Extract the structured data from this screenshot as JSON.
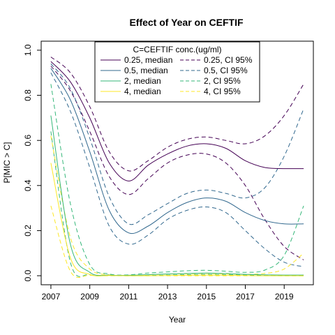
{
  "chart_data": {
    "type": "line",
    "title": "Effect of Year on CEFTIF",
    "xlabel": "Year",
    "ylabel": "P[MIC > C]",
    "xlim": [
      2006.5,
      2020.5
    ],
    "ylim": [
      -0.04,
      1.04
    ],
    "xticks": [
      2007,
      2009,
      2011,
      2013,
      2015,
      2017,
      2019
    ],
    "yticks": [
      0.0,
      0.2,
      0.4,
      0.6,
      0.8,
      1.0
    ],
    "ytick_labels": [
      "0.0",
      "0.2",
      "0.4",
      "0.6",
      "0.8",
      "1.0"
    ],
    "grid": false,
    "legend": {
      "title": "C=CEFTIF conc.(ug/ml)",
      "position": "top-center",
      "columns": 2
    },
    "x": [
      2007,
      2008,
      2009,
      2010,
      2011,
      2012,
      2013,
      2014,
      2015,
      2016,
      2017,
      2018,
      2019,
      2020
    ],
    "series": [
      {
        "name": "0.25, median",
        "style": "solid",
        "color": "#440154",
        "values": [
          0.95,
          0.86,
          0.7,
          0.5,
          0.42,
          0.49,
          0.54,
          0.575,
          0.585,
          0.565,
          0.51,
          0.48,
          0.475,
          0.475
        ]
      },
      {
        "name": "0.5, median",
        "style": "solid",
        "color": "#31688e",
        "values": [
          0.92,
          0.78,
          0.55,
          0.29,
          0.19,
          0.22,
          0.28,
          0.325,
          0.345,
          0.33,
          0.28,
          0.245,
          0.23,
          0.23
        ]
      },
      {
        "name": "2, median",
        "style": "solid",
        "color": "#35b779",
        "values": [
          0.71,
          0.14,
          0.015,
          0.003,
          0.002,
          0.005,
          0.008,
          0.01,
          0.012,
          0.01,
          0.006,
          0.004,
          0.003,
          0.003
        ]
      },
      {
        "name": "4, median",
        "style": "solid",
        "color": "#fde725",
        "values": [
          0.5,
          0.08,
          0.006,
          0.001,
          0.0,
          0.0,
          0.001,
          0.002,
          0.003,
          0.002,
          0.001,
          0.0,
          0.0,
          0.0
        ]
      },
      {
        "name": "0.25, CI 95%",
        "style": "dashed",
        "color": "#440154",
        "values": [
          0.97,
          0.9,
          0.75,
          0.55,
          0.465,
          0.51,
          0.57,
          0.605,
          0.615,
          0.6,
          0.585,
          0.62,
          0.71,
          0.85
        ]
      },
      {
        "name": "0.25, CI 95%",
        "style": "dashed",
        "color": "#440154",
        "legend": false,
        "values": [
          0.93,
          0.82,
          0.64,
          0.44,
          0.36,
          0.43,
          0.5,
          0.535,
          0.54,
          0.5,
          0.4,
          0.25,
          0.13,
          0.07
        ]
      },
      {
        "name": "0.5, CI 95%",
        "style": "dashed",
        "color": "#31688e",
        "values": [
          0.94,
          0.83,
          0.61,
          0.35,
          0.23,
          0.27,
          0.32,
          0.365,
          0.38,
          0.365,
          0.345,
          0.39,
          0.53,
          0.74
        ]
      },
      {
        "name": "0.5, CI 95%",
        "style": "dashed",
        "color": "#31688e",
        "legend": false,
        "values": [
          0.9,
          0.73,
          0.48,
          0.22,
          0.14,
          0.18,
          0.25,
          0.29,
          0.305,
          0.28,
          0.2,
          0.12,
          0.06,
          0.04
        ]
      },
      {
        "name": "2, CI 95%",
        "style": "dashed",
        "color": "#35b779",
        "values": [
          0.85,
          0.32,
          0.05,
          0.008,
          0.004,
          0.012,
          0.017,
          0.022,
          0.024,
          0.02,
          0.015,
          0.025,
          0.09,
          0.31
        ]
      },
      {
        "name": "2, CI 95%",
        "style": "dashed",
        "color": "#35b779",
        "legend": false,
        "values": [
          0.64,
          0.06,
          0.005,
          0.001,
          0.0,
          0.001,
          0.003,
          0.005,
          0.006,
          0.005,
          0.003,
          0.001,
          0.0,
          0.0
        ]
      },
      {
        "name": "4, CI 95%",
        "style": "dashed",
        "color": "#fde725",
        "values": [
          0.62,
          0.17,
          0.03,
          0.004,
          0.002,
          0.004,
          0.007,
          0.009,
          0.01,
          0.008,
          0.006,
          0.01,
          0.03,
          0.1
        ]
      },
      {
        "name": "4, CI 95%",
        "style": "dashed",
        "color": "#fde725",
        "legend": false,
        "values": [
          0.31,
          0.02,
          0.002,
          0.0,
          0.0,
          0.0,
          0.0,
          0.0,
          0.0,
          0.0,
          0.0,
          0.0,
          0.0,
          0.0
        ]
      }
    ]
  }
}
